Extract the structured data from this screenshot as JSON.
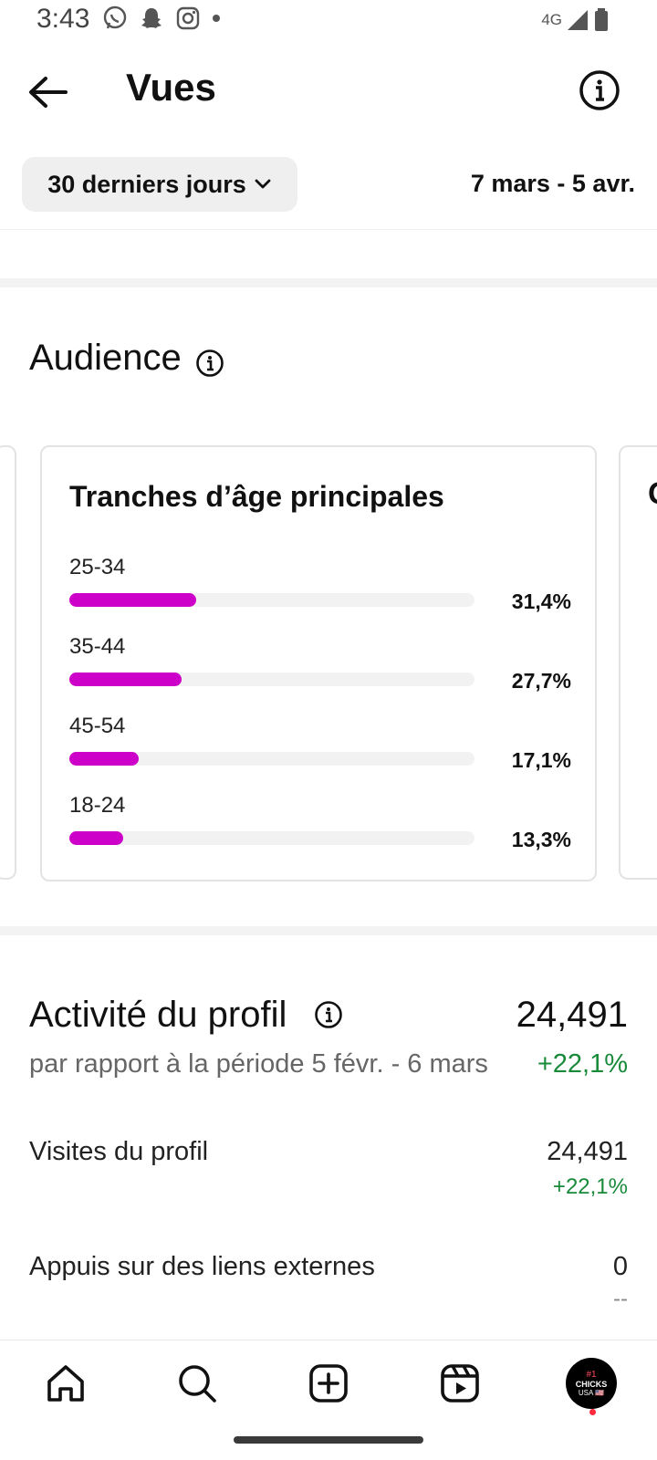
{
  "status": {
    "time": "3:43",
    "network": "4G",
    "icons": [
      "whatsapp-icon",
      "snapchat-icon",
      "instagram-icon",
      "dot-icon",
      "signal-icon",
      "battery-icon"
    ]
  },
  "header": {
    "title": "Vues"
  },
  "range": {
    "selector_label": "30 derniers jours",
    "dates": "7 mars - 5 avr."
  },
  "audience": {
    "title": "Audience",
    "card_title": "Tranches d’âge principales",
    "next_card_initial": "G",
    "age_groups": [
      {
        "label": "25-34",
        "percent_text": "31,4%",
        "value": 31.4
      },
      {
        "label": "35-44",
        "percent_text": "27,7%",
        "value": 27.7
      },
      {
        "label": "45-54",
        "percent_text": "17,1%",
        "value": 17.1
      },
      {
        "label": "18-24",
        "percent_text": "13,3%",
        "value": 13.3
      }
    ],
    "bar_color": "#cc00c8"
  },
  "activity": {
    "title": "Activité du profil",
    "total": "24,491",
    "comparison": "par rapport à la période 5 févr. - 6 mars",
    "delta": "+22,1%",
    "rows": [
      {
        "label": "Visites du profil",
        "value": "24,491",
        "delta": "+22,1%"
      },
      {
        "label": "Appuis sur des liens externes",
        "value": "0",
        "delta": "--"
      }
    ]
  },
  "nav": {
    "items": [
      "home-icon",
      "search-icon",
      "create-icon",
      "reels-icon",
      "profile-avatar"
    ],
    "avatar": {
      "line1": "#1",
      "line2": "CHICKS",
      "line3": "USA 🇺🇸"
    }
  },
  "colors": {
    "accent_positive": "#198a3a",
    "bar": "#cc00c8"
  }
}
